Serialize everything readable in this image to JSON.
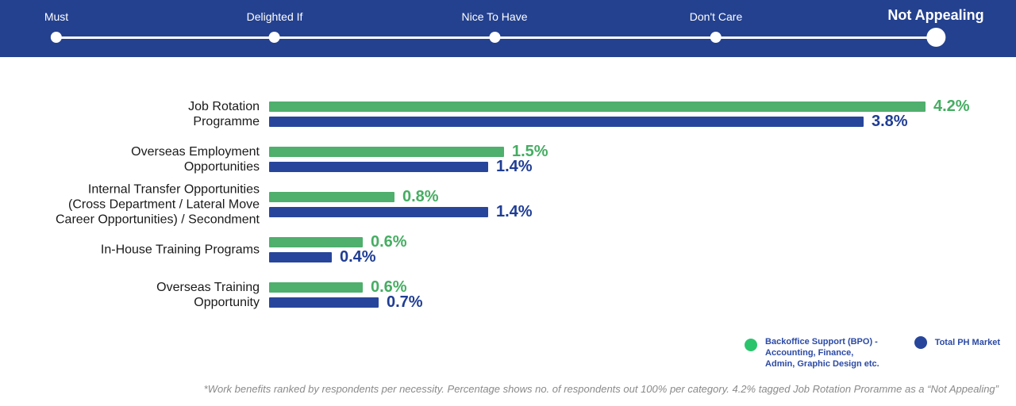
{
  "slider": {
    "items": [
      {
        "label": "Must"
      },
      {
        "label": "Delighted If"
      },
      {
        "label": "Nice To Have"
      },
      {
        "label": "Don't Care"
      },
      {
        "label": "Not Appealing"
      }
    ],
    "active_index": 4
  },
  "chart_data": {
    "type": "bar",
    "orientation": "horizontal",
    "categories": [
      "Job Rotation\nProgramme",
      "Overseas Employment\nOpportunities",
      "Internal Transfer Opportunities\n(Cross Department / Lateral Move\nCareer Opportunities) / Secondment",
      "In-House Training Programs",
      "Overseas Training\nOpportunity"
    ],
    "series": [
      {
        "name": "Backoffice Support (BPO) - Accounting, Finance, Admin, Graphic Design etc.",
        "color": "#4FAF6D",
        "value_color": "#45AD62",
        "values": [
          4.2,
          1.5,
          0.8,
          0.6,
          0.6
        ]
      },
      {
        "name": "Total PH Market",
        "color": "#27469B",
        "value_color": "#1F3D94",
        "values": [
          3.8,
          1.4,
          1.4,
          0.4,
          0.7
        ]
      }
    ],
    "value_suffix": "%",
    "xlim": [
      0,
      4.4
    ],
    "grid": false,
    "legend_position": "bottom-right",
    "title": "",
    "xlabel": "",
    "ylabel": ""
  },
  "legend": {
    "items": [
      {
        "label": "Backoffice Support (BPO) -\nAccounting, Finance,\nAdmin, Graphic Design etc.",
        "color": "#2BC46D",
        "multiline": true
      },
      {
        "label": "Total PH Market",
        "color": "#27469B",
        "multiline": false
      }
    ]
  },
  "footnote": "*Work benefits ranked by respondents per necessity. Percentage shows no. of respondents out 100% per category. 4.2% tagged Job Rotation Proramme as a “Not Appealing”",
  "colors": {
    "header": "#24418F",
    "bar_green": "#4FAF6D",
    "bar_blue": "#27469B",
    "legend_green": "#2BC46D",
    "legend_text": "#2B4AA5"
  }
}
